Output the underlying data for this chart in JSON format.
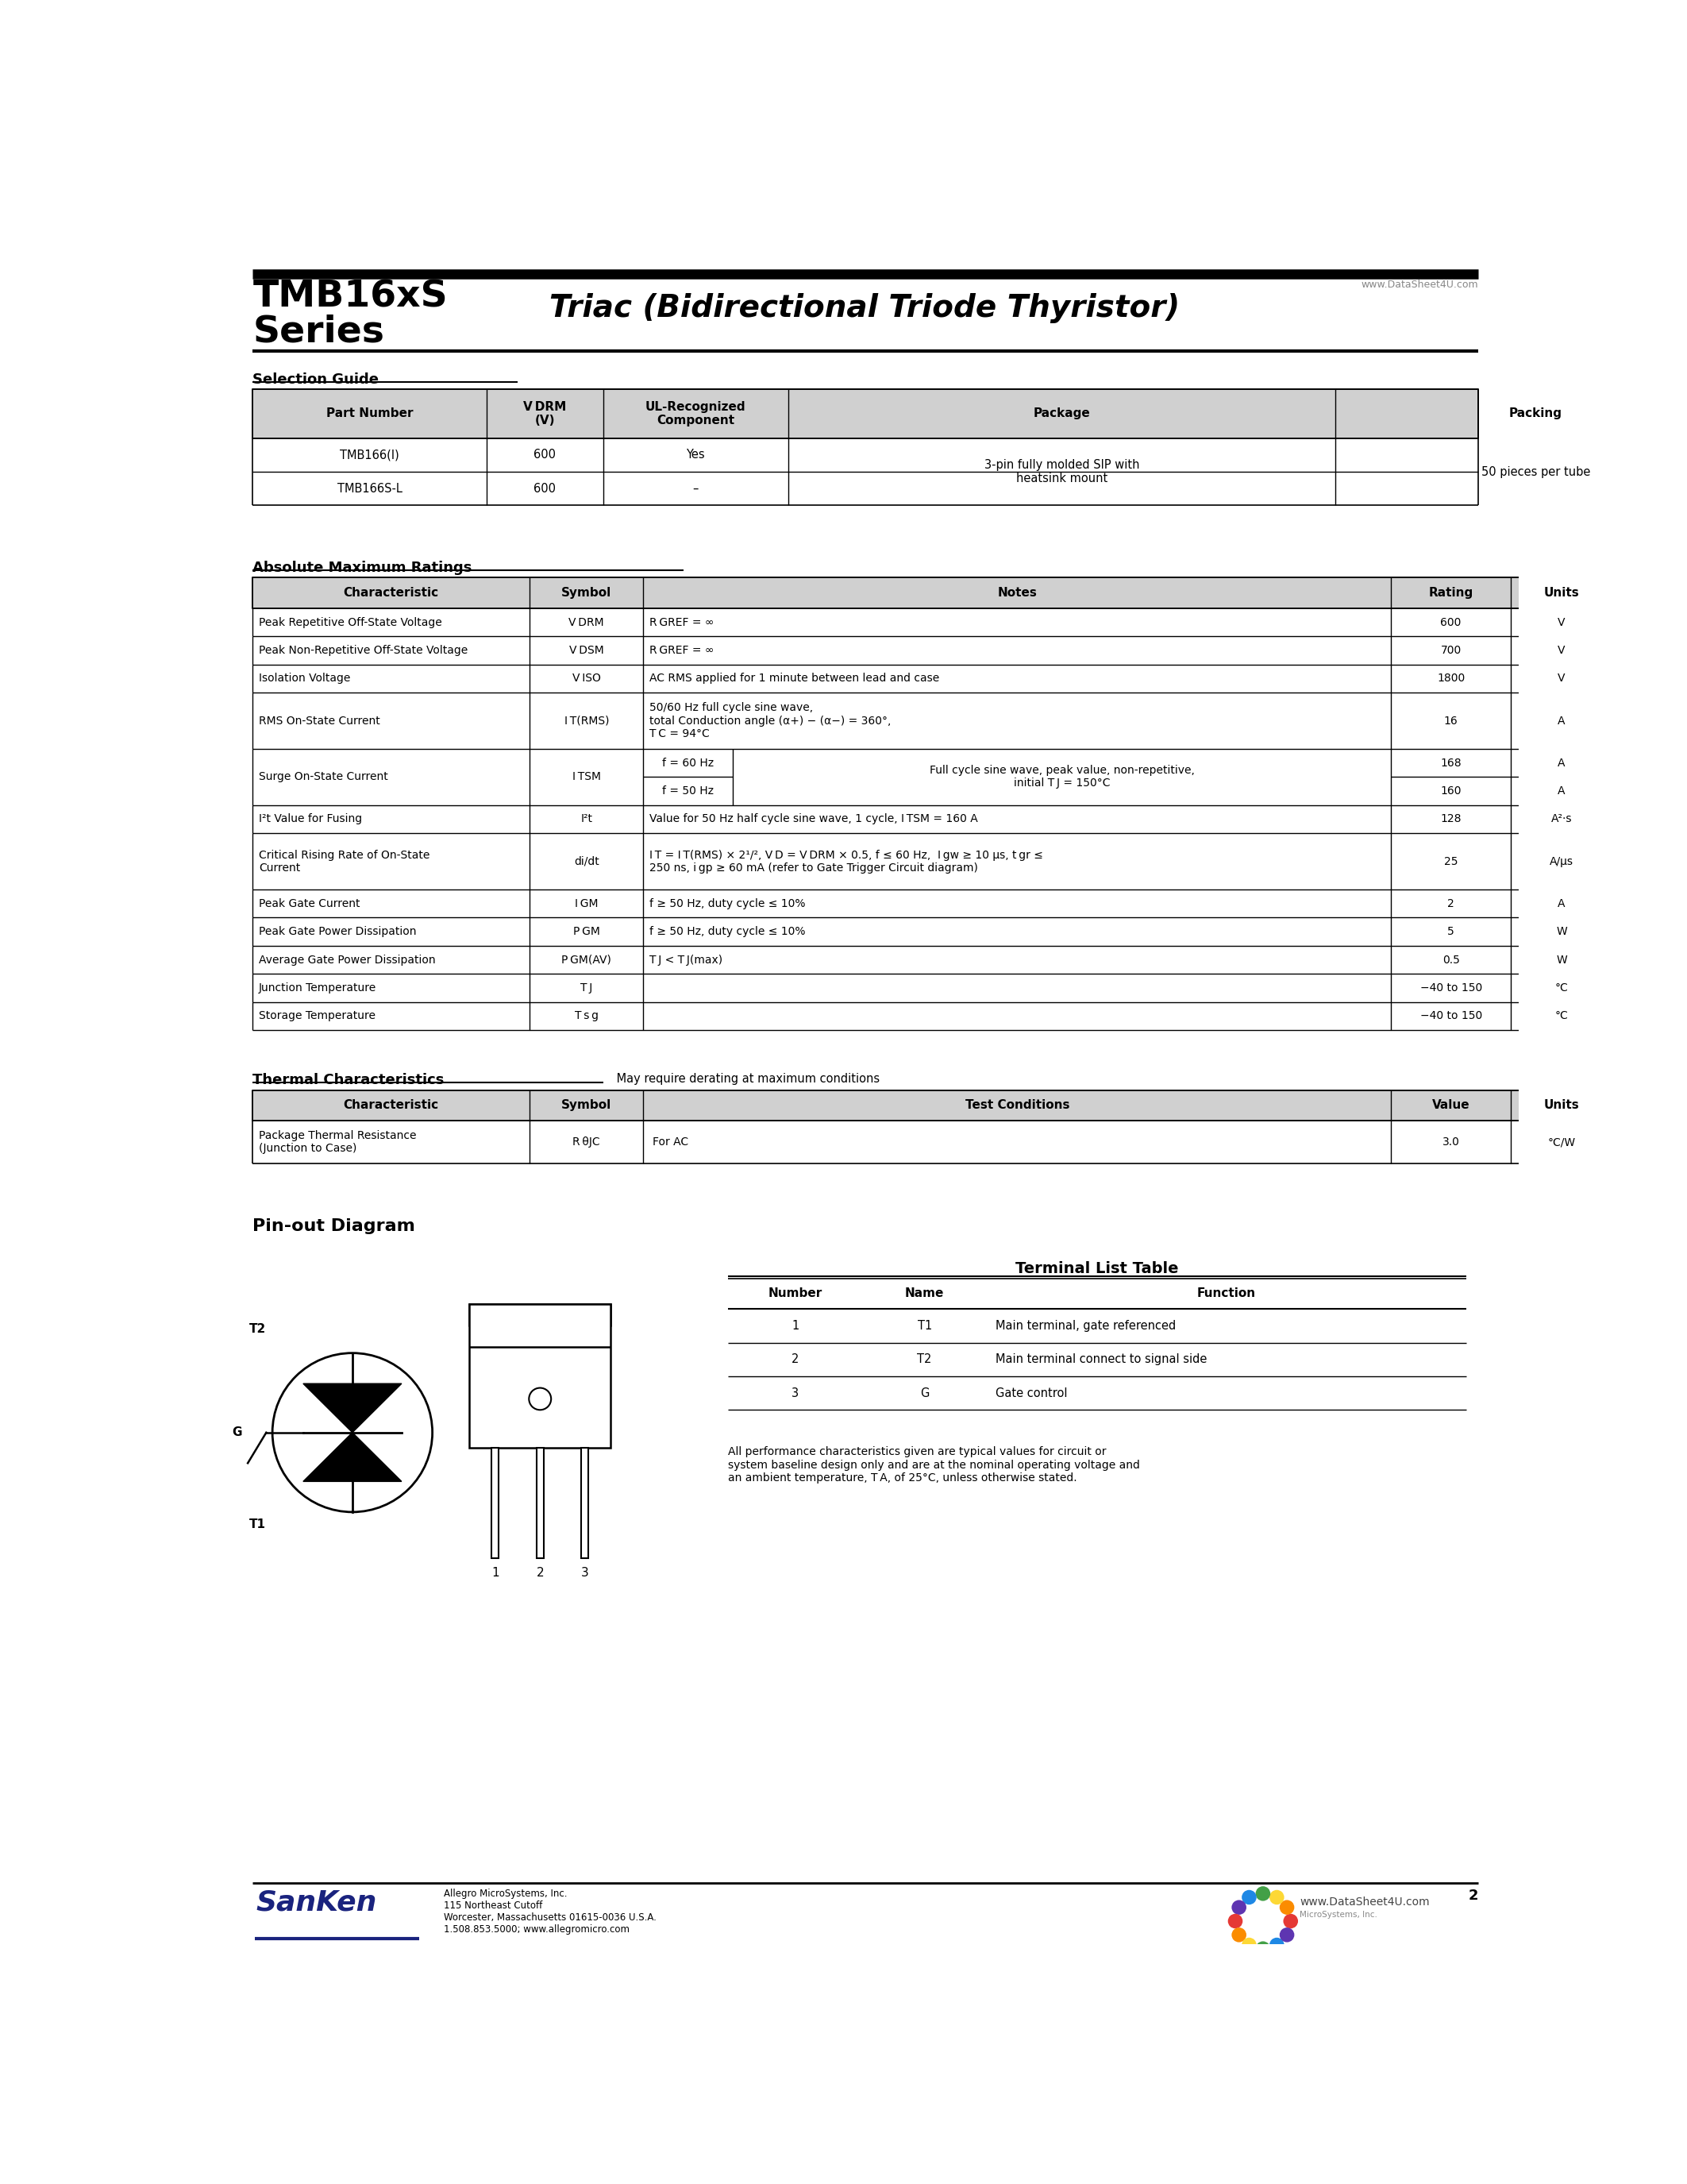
{
  "page_title_left1": "TMB16xS",
  "page_title_left2": "Series",
  "page_title_right": "Triac (Bidirectional Triode Thyristor)",
  "website_top": "www.DataSheet4U.com",
  "section1_title": "Selection Guide",
  "section2_title": "Absolute Maximum Ratings",
  "section3_title": "Thermal Characteristics",
  "section3_subtitle": "May require derating at maximum conditions",
  "section4_title": "Pin-out Diagram",
  "terminal_table_title": "Terminal List Table",
  "terminal_headers": [
    "Number",
    "Name",
    "Function"
  ],
  "terminal_rows": [
    [
      "1",
      "T1",
      "Main terminal, gate referenced"
    ],
    [
      "2",
      "T2",
      "Main terminal connect to signal side"
    ],
    [
      "3",
      "G",
      "Gate control"
    ]
  ],
  "disclaimer": "All performance characteristics given are typical values for circuit or\nsystem baseline design only and are at the nominal operating voltage and\nan ambient temperature, T A, of 25°C, unless otherwise stated.",
  "footer_company": "Allegro MicroSystems, Inc.\n115 Northeast Cutoff\nWorcester, Massachusetts 01615-0036 U.S.A.\n1.508.853.5000; www.allegromicro.com",
  "footer_page": "2",
  "bg_color": "#ffffff"
}
